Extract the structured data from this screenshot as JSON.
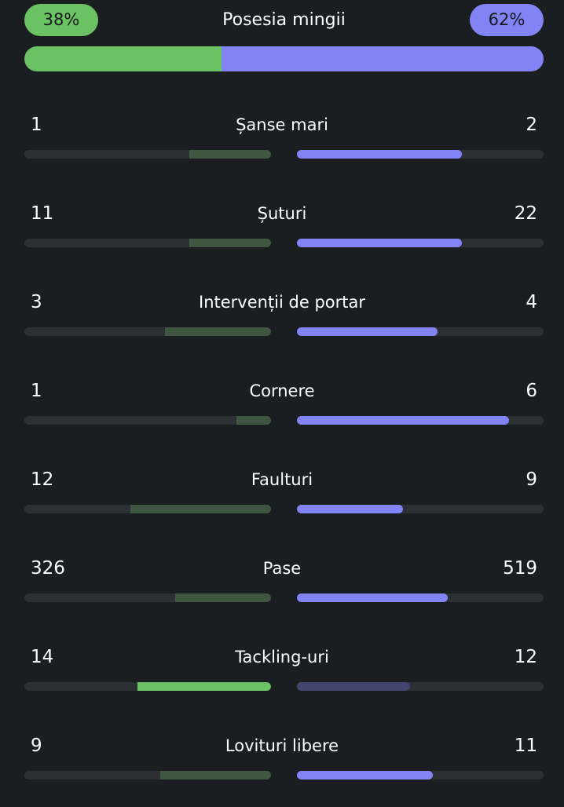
{
  "possession": {
    "title": "Posesia mingii",
    "home_label": "38%",
    "away_label": "62%",
    "home_fraction": 0.38,
    "away_fraction": 0.62
  },
  "colors": {
    "home": "#6ac262",
    "home_dim": "#3f5640",
    "away": "#8284f5",
    "away_dim": "#42466f",
    "track": "#2c2f33"
  },
  "stats": [
    {
      "label": "Șanse mari",
      "home": "1",
      "away": "2",
      "home_fraction": 0.33,
      "away_fraction": 0.67,
      "leader": "away"
    },
    {
      "label": "Șuturi",
      "home": "11",
      "away": "22",
      "home_fraction": 0.33,
      "away_fraction": 0.67,
      "leader": "away"
    },
    {
      "label": "Intervenții de portar",
      "home": "3",
      "away": "4",
      "home_fraction": 0.43,
      "away_fraction": 0.57,
      "leader": "away"
    },
    {
      "label": "Cornere",
      "home": "1",
      "away": "6",
      "home_fraction": 0.14,
      "away_fraction": 0.86,
      "leader": "away"
    },
    {
      "label": "Faulturi",
      "home": "12",
      "away": "9",
      "home_fraction": 0.57,
      "away_fraction": 0.43,
      "leader": "away"
    },
    {
      "label": "Pase",
      "home": "326",
      "away": "519",
      "home_fraction": 0.39,
      "away_fraction": 0.61,
      "leader": "away"
    },
    {
      "label": "Tackling-uri",
      "home": "14",
      "away": "12",
      "home_fraction": 0.54,
      "away_fraction": 0.46,
      "leader": "home"
    },
    {
      "label": "Lovituri libere",
      "home": "9",
      "away": "11",
      "home_fraction": 0.45,
      "away_fraction": 0.55,
      "leader": "away"
    }
  ]
}
